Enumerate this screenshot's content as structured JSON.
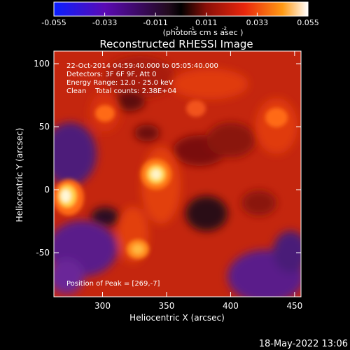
{
  "chart_data": {
    "type": "heatmap",
    "title": "Reconstructed RHESSI Image",
    "xlabel": "Heliocentric X (arcsec)",
    "ylabel": "Heliocentric Y (arcsec)",
    "xlim": [
      262,
      455
    ],
    "ylim": [
      -85,
      110
    ],
    "x_ticks": [
      300,
      350,
      400,
      450
    ],
    "y_ticks": [
      -50,
      0,
      50,
      100
    ],
    "colorbar": {
      "range": [
        -0.055,
        0.055
      ],
      "ticks": [
        "-0.055",
        "-0.033",
        "-0.011",
        "0.011",
        "0.033",
        "0.055"
      ],
      "unit_label": "(photons cm  s  asec )",
      "unit_superscripts": [
        "-2",
        "-1",
        "-2"
      ]
    },
    "info_lines": [
      "22-Oct-2014 04:59:40.000 to 05:05:40.000",
      "Detectors: 3F 6F 9F, Att 0",
      "Energy Range: 12.0 - 25.0 keV",
      "Clean    Total counts: 2.38E+04"
    ],
    "peak_text": "Position of Peak = [269,-7]",
    "peak_position": [
      269,
      -7
    ],
    "sources": [
      {
        "x": 269,
        "y": -7,
        "value": 0.055
      },
      {
        "x": 345,
        "y": 12,
        "value": 0.05
      },
      {
        "x": 330,
        "y": -48,
        "value": 0.036
      },
      {
        "x": 312,
        "y": 62,
        "value": 0.032
      },
      {
        "x": 405,
        "y": 62,
        "value": 0.028
      }
    ],
    "negative_regions": [
      {
        "x": 280,
        "y": 50,
        "value": -0.03
      },
      {
        "x": 300,
        "y": -50,
        "value": -0.035
      },
      {
        "x": 425,
        "y": -60,
        "value": -0.033
      },
      {
        "x": 385,
        "y": -10,
        "value": -0.02
      },
      {
        "x": 345,
        "y": 68,
        "value": -0.018
      }
    ]
  },
  "timestamp": "18-May-2022 13:06"
}
